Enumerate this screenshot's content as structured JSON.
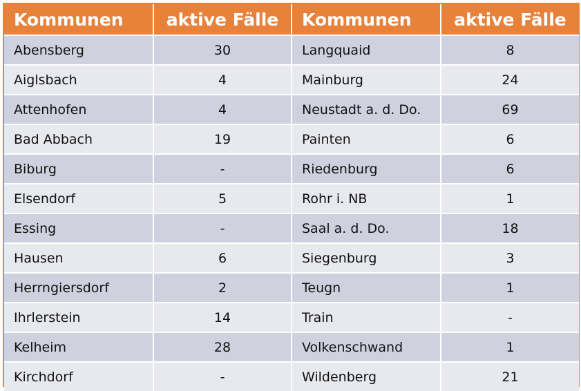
{
  "header": {
    "col1": "Kommunen",
    "col2": "aktive Fälle",
    "col3": "Kommunen",
    "col4": "aktive Fälle"
  },
  "rows": [
    {
      "left_name": "Abensberg",
      "left_value": "30",
      "right_name": "Langquaid",
      "right_value": "8"
    },
    {
      "left_name": "Aiglsbach",
      "left_value": "4",
      "right_name": "Mainburg",
      "right_value": "24"
    },
    {
      "left_name": "Attenhofen",
      "left_value": "4",
      "right_name": "Neustadt a. d. Do.",
      "right_value": "69"
    },
    {
      "left_name": "Bad Abbach",
      "left_value": "19",
      "right_name": "Painten",
      "right_value": "6"
    },
    {
      "left_name": "Biburg",
      "left_value": "-",
      "right_name": "Riedenburg",
      "right_value": "6"
    },
    {
      "left_name": "Elsendorf",
      "left_value": "5",
      "right_name": "Rohr i. NB",
      "right_value": "1"
    },
    {
      "left_name": "Essing",
      "left_value": "-",
      "right_name": "Saal a. d. Do.",
      "right_value": "18"
    },
    {
      "left_name": "Hausen",
      "left_value": "6",
      "right_name": "Siegenburg",
      "right_value": "3"
    },
    {
      "left_name": "Herrngiersdorf",
      "left_value": "2",
      "right_name": "Teugn",
      "right_value": "1"
    },
    {
      "left_name": "Ihrlerstein",
      "left_value": "14",
      "right_name": "Train",
      "right_value": "-"
    },
    {
      "left_name": "Kelheim",
      "left_value": "28",
      "right_name": "Volkenschwand",
      "right_value": "1"
    },
    {
      "left_name": "Kirchdorf",
      "left_value": "-",
      "right_name": "Wildenberg",
      "right_value": "21"
    }
  ],
  "colors": {
    "header_bg": "#e8813a",
    "row_dark": "#cfd1de",
    "row_light": "#e8e9ef"
  }
}
